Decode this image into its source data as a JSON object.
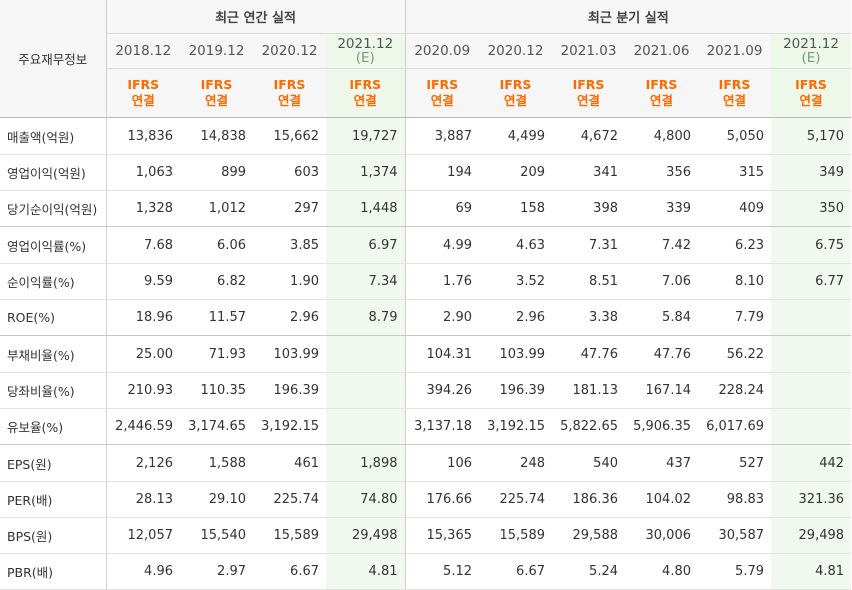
{
  "header": {
    "row_label": "주요재무정보",
    "annual_title": "최근 연간 실적",
    "quarter_title": "최근 분기 실적",
    "periods": [
      {
        "date": "2018.12",
        "est": ""
      },
      {
        "date": "2019.12",
        "est": ""
      },
      {
        "date": "2020.12",
        "est": ""
      },
      {
        "date": "2021.12",
        "est": "(E)"
      },
      {
        "date": "2020.09",
        "est": ""
      },
      {
        "date": "2020.12",
        "est": ""
      },
      {
        "date": "2021.03",
        "est": ""
      },
      {
        "date": "2021.06",
        "est": ""
      },
      {
        "date": "2021.09",
        "est": ""
      },
      {
        "date": "2021.12",
        "est": "(E)"
      }
    ],
    "ifrs_line1": "IFRS",
    "ifrs_line2": "연결"
  },
  "rows": [
    {
      "label": "매출액(억원)",
      "values": [
        "13,836",
        "14,838",
        "15,662",
        "19,727",
        "3,887",
        "4,499",
        "4,672",
        "4,800",
        "5,050",
        "5,170"
      ]
    },
    {
      "label": "영업이익(억원)",
      "values": [
        "1,063",
        "899",
        "603",
        "1,374",
        "194",
        "209",
        "341",
        "356",
        "315",
        "349"
      ]
    },
    {
      "label": "당기순이익(억원)",
      "values": [
        "1,328",
        "1,012",
        "297",
        "1,448",
        "69",
        "158",
        "398",
        "339",
        "409",
        "350"
      ],
      "group_end": true
    },
    {
      "label": "영업이익률(%)",
      "values": [
        "7.68",
        "6.06",
        "3.85",
        "6.97",
        "4.99",
        "4.63",
        "7.31",
        "7.42",
        "6.23",
        "6.75"
      ]
    },
    {
      "label": "순이익률(%)",
      "values": [
        "9.59",
        "6.82",
        "1.90",
        "7.34",
        "1.76",
        "3.52",
        "8.51",
        "7.06",
        "8.10",
        "6.77"
      ]
    },
    {
      "label": "ROE(%)",
      "values": [
        "18.96",
        "11.57",
        "2.96",
        "8.79",
        "2.90",
        "2.96",
        "3.38",
        "5.84",
        "7.79",
        ""
      ],
      "group_end": true
    },
    {
      "label": "부채비율(%)",
      "values": [
        "25.00",
        "71.93",
        "103.99",
        "",
        "104.31",
        "103.99",
        "47.76",
        "47.76",
        "56.22",
        ""
      ]
    },
    {
      "label": "당좌비율(%)",
      "values": [
        "210.93",
        "110.35",
        "196.39",
        "",
        "394.26",
        "196.39",
        "181.13",
        "167.14",
        "228.24",
        ""
      ]
    },
    {
      "label": "유보율(%)",
      "values": [
        "2,446.59",
        "3,174.65",
        "3,192.15",
        "",
        "3,137.18",
        "3,192.15",
        "5,822.65",
        "5,906.35",
        "6,017.69",
        ""
      ],
      "group_end": true
    },
    {
      "label": "EPS(원)",
      "values": [
        "2,126",
        "1,588",
        "461",
        "1,898",
        "106",
        "248",
        "540",
        "437",
        "527",
        "442"
      ]
    },
    {
      "label": "PER(배)",
      "values": [
        "28.13",
        "29.10",
        "225.74",
        "74.80",
        "176.66",
        "225.74",
        "186.36",
        "104.02",
        "98.83",
        "321.36"
      ]
    },
    {
      "label": "BPS(원)",
      "values": [
        "12,057",
        "15,540",
        "15,589",
        "29,498",
        "15,365",
        "15,589",
        "29,588",
        "30,006",
        "30,587",
        "29,498"
      ]
    },
    {
      "label": "PBR(배)",
      "values": [
        "4.96",
        "2.97",
        "6.67",
        "4.81",
        "5.12",
        "6.67",
        "5.24",
        "4.80",
        "5.79",
        "4.81"
      ]
    }
  ]
}
